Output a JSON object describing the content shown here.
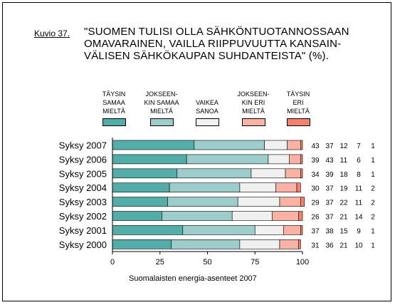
{
  "figure_label": "Kuvio 37.",
  "title_lines": [
    "\"SUOMEN TULISI OLLA SÄHKÖNTUOTANNOSSAAN",
    "OMAVARAINEN, VAILLA RIIPPUVUUTTA KANSAIN-",
    "VÄLISEN SÄHKÖKAUPAN SUHDANTEISTA\" (%)."
  ],
  "caption": "Suomalaisten energia-asenteet 2007",
  "chart_data": {
    "type": "bar",
    "orientation": "horizontal",
    "stacked": true,
    "categories": [
      "Syksy 2007",
      "Syksy 2006",
      "Syksy 2005",
      "Syksy 2004",
      "Syksy 2003",
      "Syksy 2002",
      "Syksy 2001",
      "Syksy 2000"
    ],
    "series": [
      {
        "name": "TÄYSIN SAMAA MIELTÄ",
        "name_lines": [
          "TÄYSIN",
          "SAMAA",
          "MIELTÄ"
        ],
        "color": "#52ada8",
        "values": [
          43,
          39,
          34,
          30,
          29,
          26,
          37,
          31
        ]
      },
      {
        "name": "JOKSEENKIN SAMAA MIELTÄ",
        "name_lines": [
          "JOKSEEN-",
          "KIN SAMAA",
          "MIELTÄ"
        ],
        "color": "#9ccdcb",
        "values": [
          37,
          43,
          39,
          37,
          37,
          37,
          38,
          36
        ]
      },
      {
        "name": "VAIKEA SANOA",
        "name_lines": [
          "VAIKEA",
          "SANOA"
        ],
        "color": "#f0f0f0",
        "values": [
          12,
          11,
          18,
          19,
          22,
          21,
          15,
          21
        ]
      },
      {
        "name": "JOKSEENKIN ERI MIELTÄ",
        "name_lines": [
          "JOKSEEN-",
          "KIN ERI",
          "MIELTÄ"
        ],
        "color": "#f9b2a3",
        "values": [
          7,
          6,
          8,
          11,
          11,
          14,
          9,
          10
        ]
      },
      {
        "name": "TÄYSIN ERI MIELTÄ",
        "name_lines": [
          "TÄYSIN",
          "ERI",
          "MIELTÄ"
        ],
        "color": "#f4806e",
        "values": [
          1,
          1,
          1,
          2,
          2,
          2,
          1,
          1
        ]
      }
    ],
    "xlim": [
      0,
      100
    ],
    "xticks": [
      "0",
      "25",
      "50",
      "75",
      "100"
    ],
    "xlabel": "",
    "ylabel": "",
    "grid": false,
    "legend": "top"
  }
}
